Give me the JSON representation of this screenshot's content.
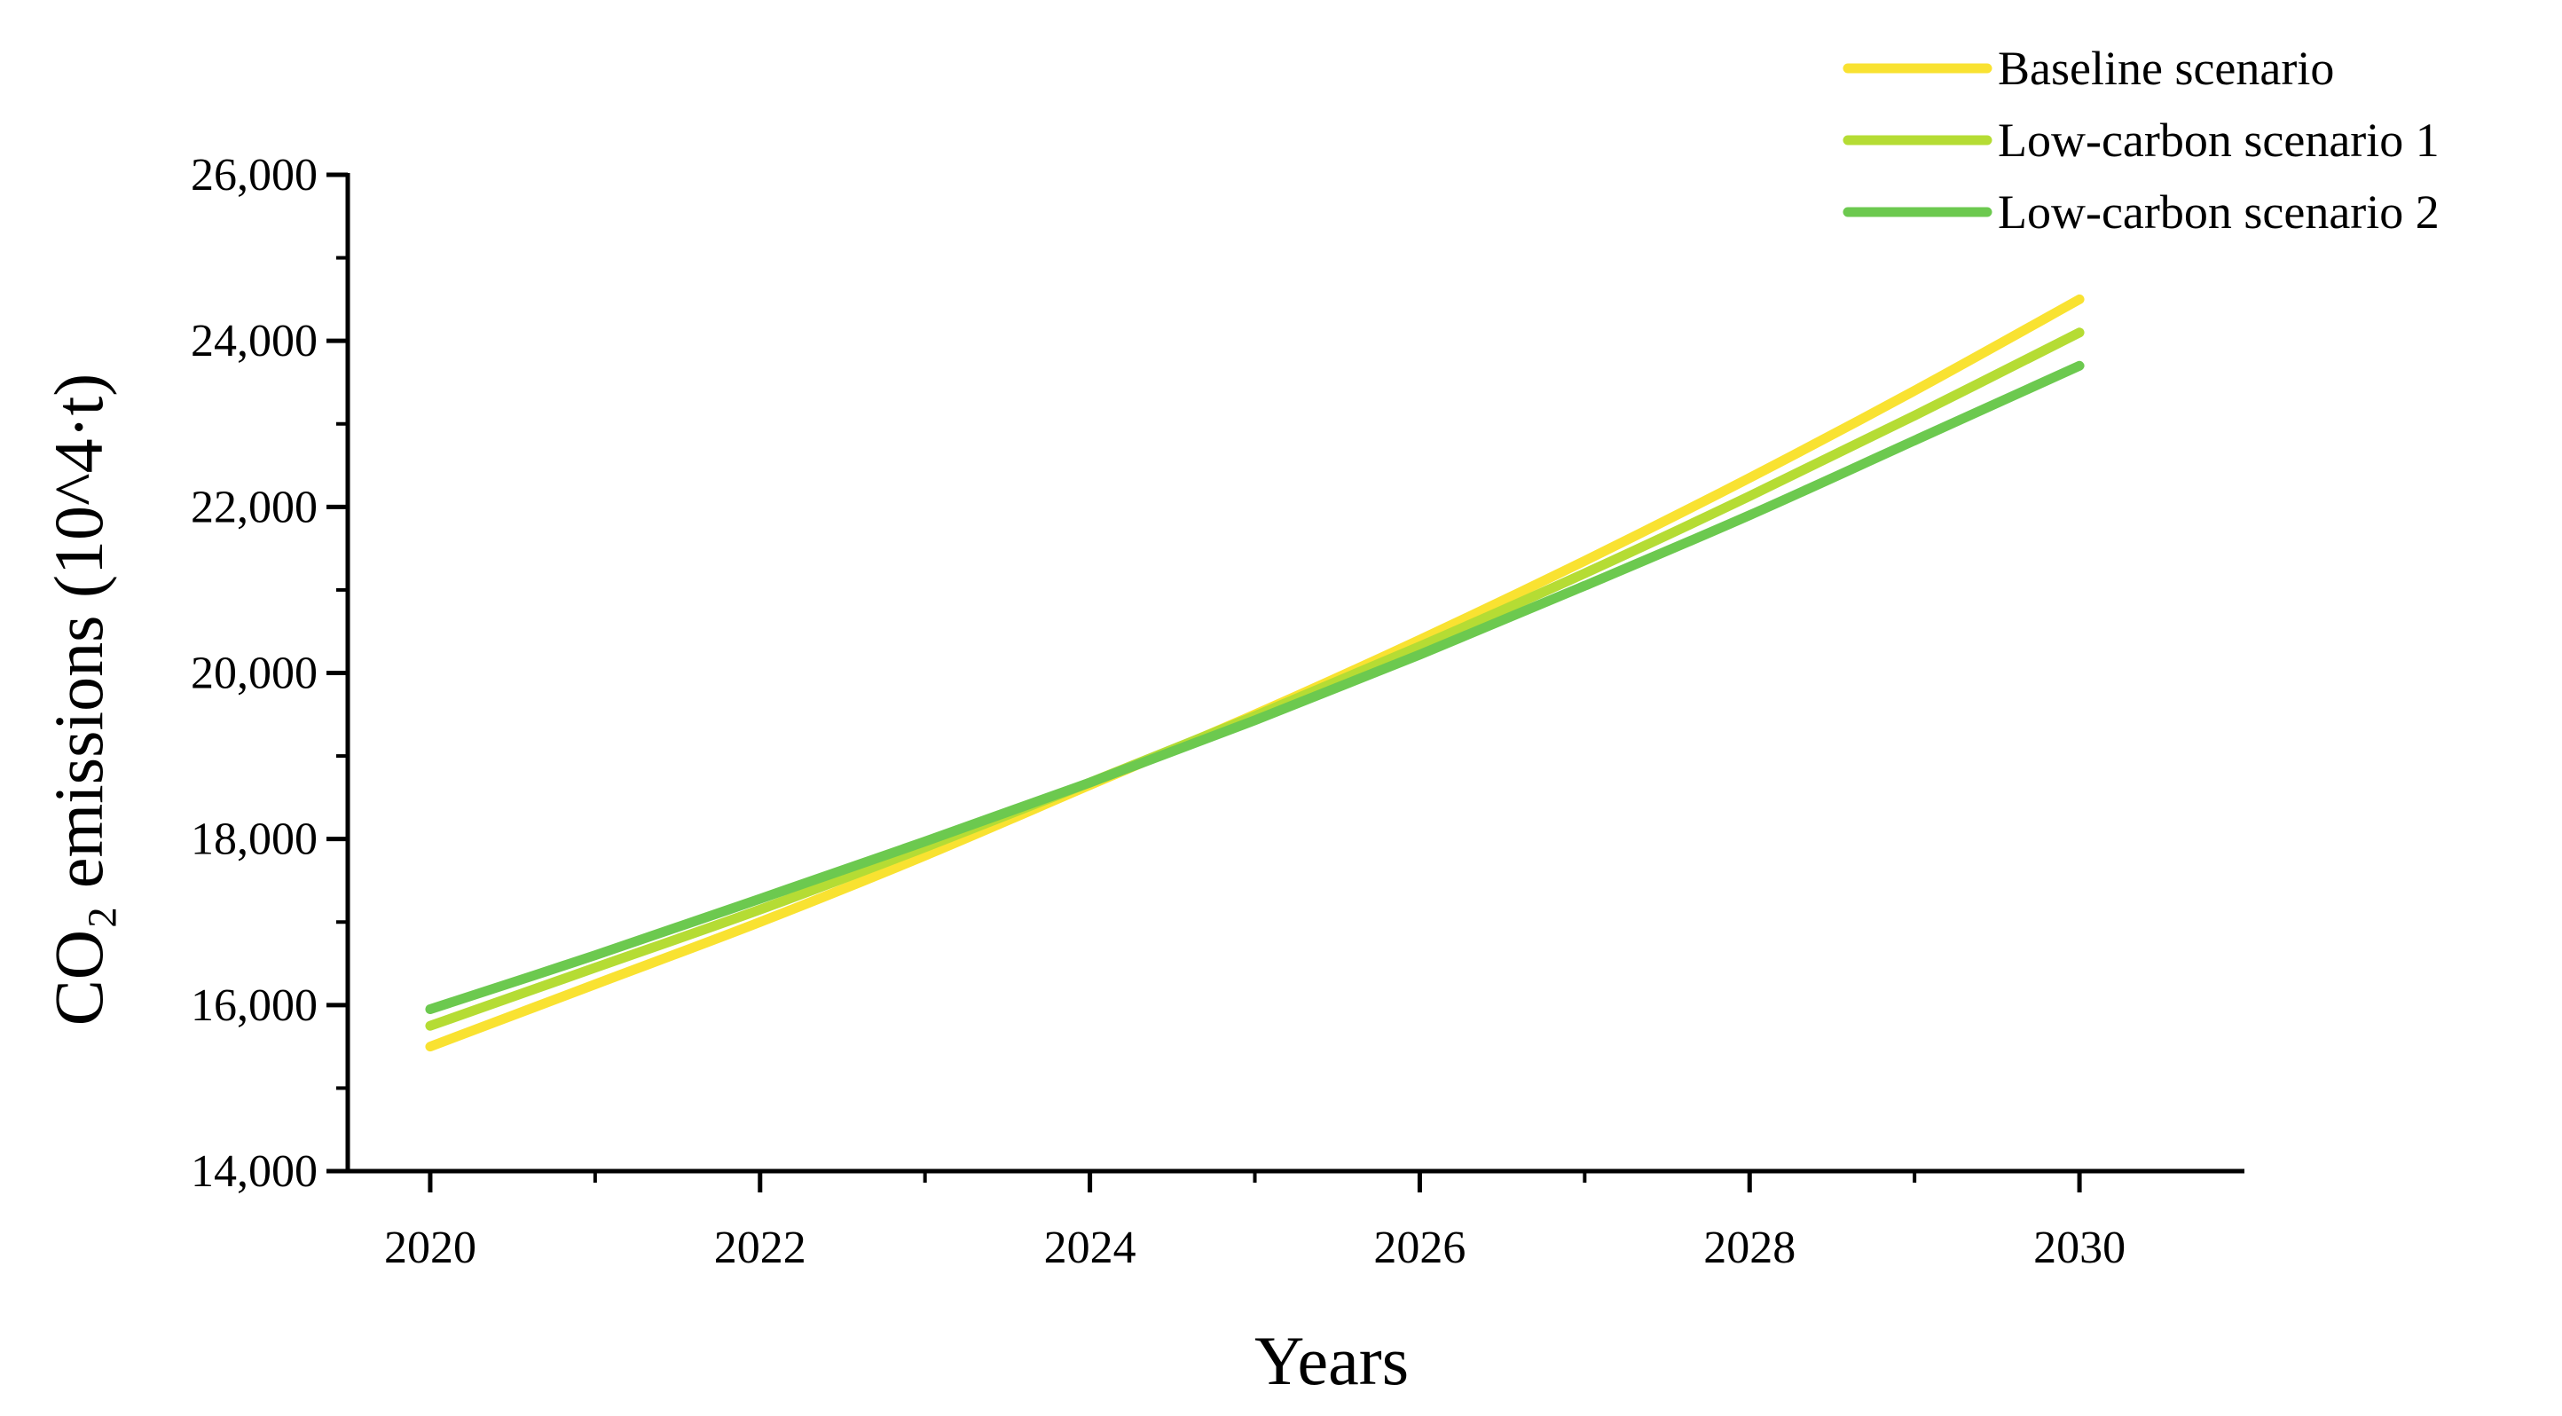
{
  "chart_data": {
    "type": "line",
    "title": "",
    "xlabel": "Years",
    "ylabel": "CO₂ emissions (10^4·t)",
    "x": [
      2020,
      2021,
      2022,
      2023,
      2024,
      2025,
      2026,
      2027,
      2028,
      2029,
      2030
    ],
    "xlim": [
      2019.5,
      2031
    ],
    "ylim": [
      14000,
      26000
    ],
    "x_ticks": [
      "2020",
      "2022",
      "2024",
      "2026",
      "2028",
      "2030"
    ],
    "y_ticks": [
      "14,000",
      "16,000",
      "18,000",
      "20,000",
      "22,000",
      "24,000",
      "26,000"
    ],
    "grid": false,
    "legend_position": "top-right",
    "series": [
      {
        "name": "Baseline scenario",
        "color": "#F9E231",
        "values": [
          15500,
          16250,
          17000,
          17800,
          18650,
          19500,
          20400,
          21350,
          22350,
          23400,
          24500
        ]
      },
      {
        "name": "Low-carbon scenario 1",
        "color": "#B5DC34",
        "values": [
          15750,
          16450,
          17150,
          17900,
          18680,
          19480,
          20320,
          21200,
          22130,
          23100,
          24100
        ]
      },
      {
        "name": "Low-carbon scenario 2",
        "color": "#6CC94F",
        "values": [
          15950,
          16600,
          17280,
          17970,
          18680,
          19430,
          20220,
          21050,
          21900,
          22800,
          23700
        ]
      }
    ]
  }
}
